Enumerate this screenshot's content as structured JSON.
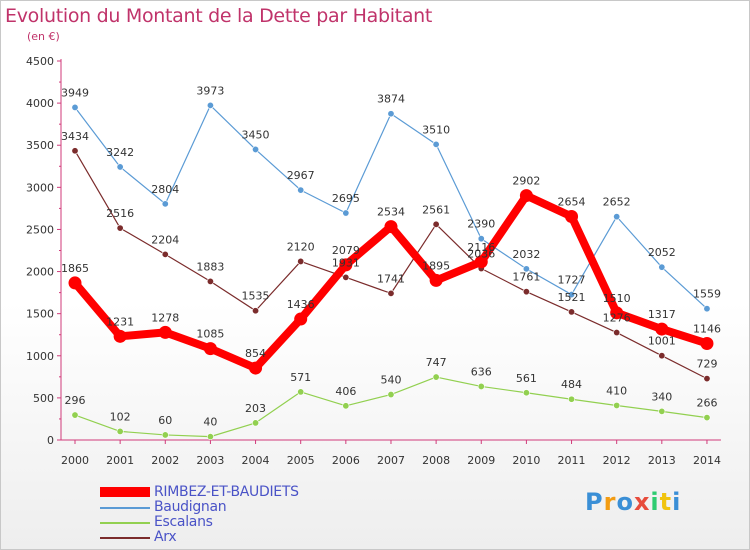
{
  "title": "Evolution du Montant de la Dette par Habitant",
  "unit_label": "(en €)",
  "logo_text": "Proxiti",
  "chart_data": {
    "type": "line",
    "x": [
      "2000",
      "2001",
      "2002",
      "2003",
      "2004",
      "2005",
      "2006",
      "2007",
      "2008",
      "2009",
      "2010",
      "2011",
      "2012",
      "2013",
      "2014"
    ],
    "yticks": [
      "0",
      "500",
      "1000",
      "1500",
      "2000",
      "2500",
      "3000",
      "3500",
      "4000",
      "4500"
    ],
    "ylim": [
      0,
      4500
    ],
    "grid": false,
    "legend_position": "bottom-left",
    "series": [
      {
        "name": "RIMBEZ-ET-BAUDIETS",
        "color": "#ff0000",
        "emphasis": true,
        "values": [
          1865,
          1231,
          1278,
          1085,
          854,
          1436,
          2079,
          2534,
          1895,
          2116,
          2902,
          2654,
          1510,
          1317,
          1146
        ]
      },
      {
        "name": "Baudignan",
        "color": "#5b9bd5",
        "values": [
          3949,
          3242,
          2804,
          3973,
          3450,
          2967,
          2695,
          3874,
          3510,
          2390,
          2032,
          1727,
          2652,
          2052,
          1559
        ]
      },
      {
        "name": "Escalans",
        "color": "#92d050",
        "values": [
          296,
          102,
          60,
          40,
          203,
          571,
          406,
          540,
          747,
          636,
          561,
          484,
          410,
          340,
          266
        ]
      },
      {
        "name": "Arx",
        "color": "#7b2c2c",
        "values": [
          3434,
          2516,
          2204,
          1883,
          1535,
          2120,
          1931,
          1741,
          2561,
          2036,
          1761,
          1521,
          1276,
          1001,
          729
        ]
      }
    ],
    "value_labels": [
      [
        "1865",
        "1231",
        "1278",
        "1085",
        "854",
        "1436",
        "2079",
        "2534",
        "1895",
        "2116",
        "2902",
        "2654",
        "1510",
        "1317",
        "1146"
      ],
      [
        "3949",
        "3242",
        "2804",
        "3973",
        "3450",
        "2967",
        "2695",
        "3874",
        "3510",
        "2390",
        "2032",
        "1727",
        "2652",
        "2052",
        "1559"
      ],
      [
        "296",
        "102",
        "60",
        "40",
        "203",
        "571",
        "406",
        "540",
        "747",
        "636",
        "561",
        "484",
        "410",
        "340",
        "266"
      ],
      [
        "3434",
        "2516",
        "2204",
        "1883",
        "1535",
        "2120",
        "1931",
        "1741",
        "2561",
        "2036",
        "1761",
        "1521",
        "1276",
        "1001",
        "729"
      ]
    ]
  }
}
